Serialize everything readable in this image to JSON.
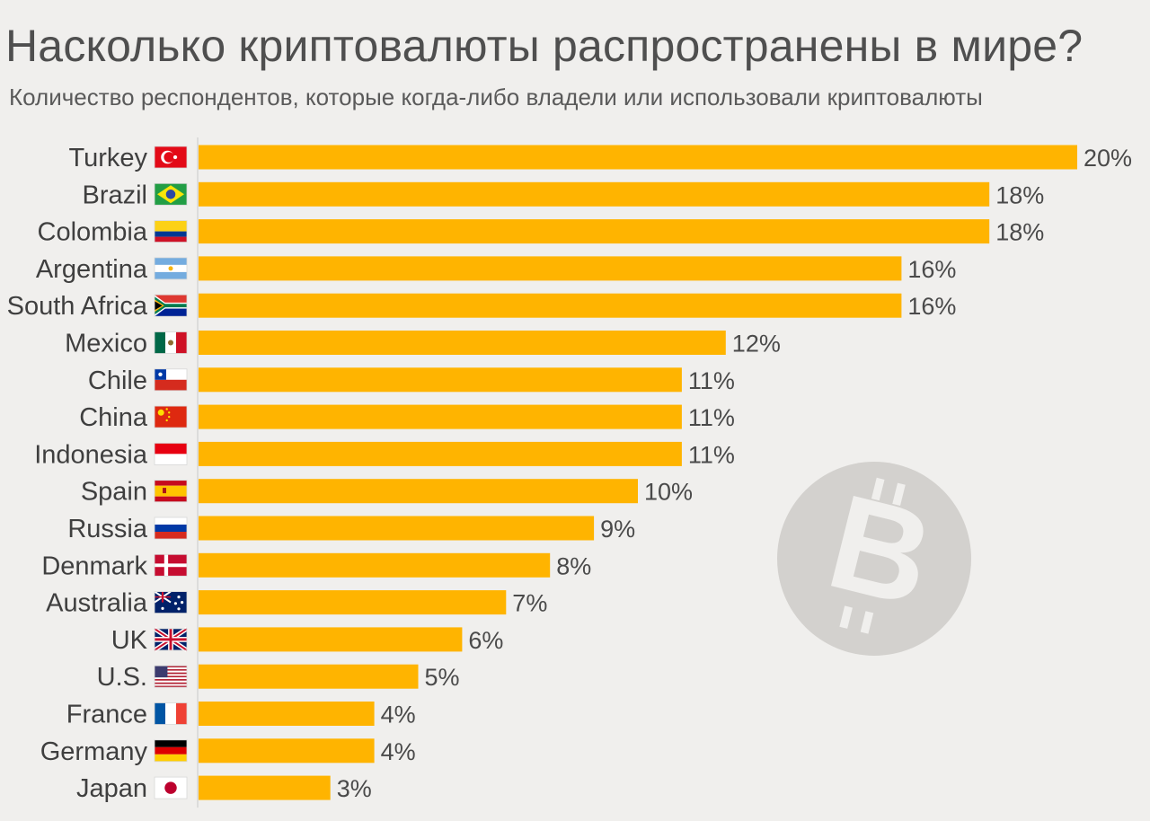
{
  "title": "Насколько криптовалюты распространены в мире?",
  "subtitle": "Количество респондентов, которые когда-либо владели или использовали криптовалюты",
  "colors": {
    "bar": "#ffb400",
    "axis": "#c9c9c9",
    "coin": "#d3d1ce",
    "coin_symbol": "#f0efed"
  },
  "chart_data": {
    "type": "bar",
    "orientation": "horizontal",
    "unit": "%",
    "categories": [
      "Turkey",
      "Brazil",
      "Colombia",
      "Argentina",
      "South Africa",
      "Mexico",
      "Chile",
      "China",
      "Indonesia",
      "Spain",
      "Russia",
      "Denmark",
      "Australia",
      "UK",
      "U.S.",
      "France",
      "Germany",
      "Japan"
    ],
    "flags": [
      "turkey-flag-icon",
      "brazil-flag-icon",
      "colombia-flag-icon",
      "argentina-flag-icon",
      "south-africa-flag-icon",
      "mexico-flag-icon",
      "chile-flag-icon",
      "china-flag-icon",
      "indonesia-flag-icon",
      "spain-flag-icon",
      "russia-flag-icon",
      "denmark-flag-icon",
      "australia-flag-icon",
      "uk-flag-icon",
      "us-flag-icon",
      "france-flag-icon",
      "germany-flag-icon",
      "japan-flag-icon"
    ],
    "values": [
      20,
      18,
      18,
      16,
      16,
      12,
      11,
      11,
      11,
      10,
      9,
      8,
      7,
      6,
      5,
      4,
      4,
      3
    ],
    "value_labels": [
      "20%",
      "18%",
      "18%",
      "16%",
      "16%",
      "12%",
      "11%",
      "11%",
      "11%",
      "10%",
      "9%",
      "8%",
      "7%",
      "6%",
      "5%",
      "4%",
      "4%",
      "3%"
    ],
    "xlim": [
      0,
      20
    ],
    "grid": false,
    "legend": "none"
  },
  "watermark": {
    "icon": "bitcoin-icon",
    "symbol": "B"
  }
}
